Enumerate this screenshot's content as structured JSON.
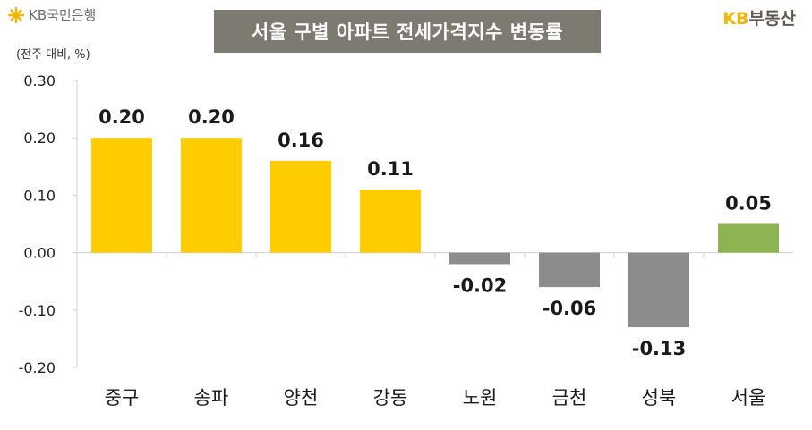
{
  "header": {
    "left_logo_text": "KB국민은행",
    "title": "서울 구별 아파트 전세가격지수 변동률",
    "right_logo_kb": "KB",
    "right_logo_rest": "부동산"
  },
  "chart_data": {
    "type": "bar",
    "title": "서울 구별 아파트 전세가격지수 변동률",
    "unit_label": "(전주 대비, %)",
    "categories": [
      "중구",
      "송파",
      "양천",
      "강동",
      "노원",
      "금천",
      "성북",
      "서울"
    ],
    "values": [
      0.2,
      0.2,
      0.16,
      0.11,
      -0.02,
      -0.06,
      -0.13,
      0.05
    ],
    "value_labels": [
      "0.20",
      "0.20",
      "0.16",
      "0.11",
      "-0.02",
      "-0.06",
      "-0.13",
      "0.05"
    ],
    "ylim": [
      -0.2,
      0.3
    ],
    "y_ticks": [
      "0.30",
      "0.20",
      "0.10",
      "0.00",
      "-0.10",
      "-0.20"
    ],
    "y_tick_values": [
      0.3,
      0.2,
      0.1,
      0.0,
      -0.1,
      -0.2
    ],
    "bar_colors": [
      "#ffcc00",
      "#ffcc00",
      "#ffcc00",
      "#ffcc00",
      "#8c8c8c",
      "#8c8c8c",
      "#8c8c8c",
      "#8db451"
    ],
    "grid": false
  }
}
